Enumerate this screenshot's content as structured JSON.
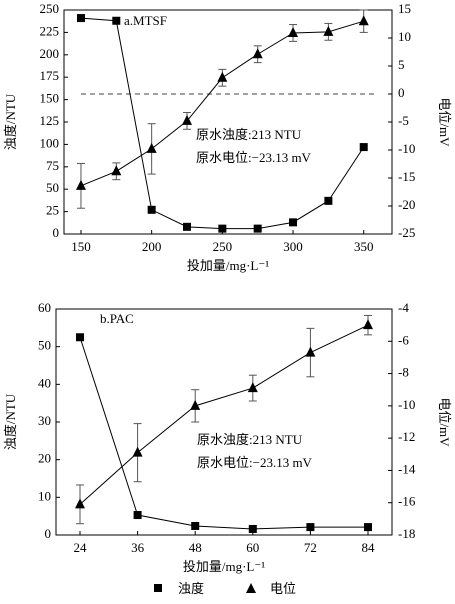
{
  "chart_data": [
    {
      "type": "line",
      "title": "a.MTSF",
      "x": [
        150,
        175,
        200,
        225,
        250,
        275,
        300,
        325,
        350
      ],
      "xlim": [
        138,
        370
      ],
      "xticks": [
        150,
        200,
        250,
        300,
        350
      ],
      "ylim": [
        0,
        250
      ],
      "yticks": [
        0,
        25,
        50,
        75,
        100,
        125,
        150,
        175,
        200,
        225,
        250
      ],
      "y2lim": [
        -25,
        15
      ],
      "y2ticks": [
        -25,
        -20,
        -15,
        -10,
        -5,
        0,
        5,
        10,
        15
      ],
      "xlabel": "投加量/mg·L⁻¹",
      "ylabel": "浊度/NTU",
      "y2label": "电位/mV",
      "annotations": [
        "原水浊度:213 NTU",
        "原水电位:−23.13 mV"
      ],
      "hline_y2": 0,
      "series": [
        {
          "name": "浊度",
          "marker": "square",
          "color": "#000000",
          "values": [
            241,
            238,
            27,
            8,
            6,
            6,
            13,
            37,
            97
          ]
        },
        {
          "name": "电位",
          "marker": "triangle",
          "color": "#000000",
          "axis": "y2",
          "values": [
            -16.4,
            -13.8,
            -9.8,
            -4.8,
            2.9,
            7.1,
            10.9,
            11.1,
            13.0
          ],
          "errors": [
            4,
            1.5,
            4.5,
            1.5,
            1.5,
            1.5,
            1.5,
            1.5,
            2
          ]
        }
      ]
    },
    {
      "type": "line",
      "title": "b.PAC",
      "x": [
        24,
        36,
        48,
        60,
        72,
        84
      ],
      "xlim": [
        19,
        89
      ],
      "xticks": [
        24,
        36,
        48,
        60,
        72,
        84
      ],
      "ylim": [
        0,
        60
      ],
      "yticks": [
        0,
        10,
        20,
        30,
        40,
        50,
        60
      ],
      "y2lim": [
        -18,
        -4
      ],
      "y2ticks": [
        -18,
        -16,
        -14,
        -12,
        -10,
        -8,
        -6,
        -4
      ],
      "xlabel": "投加量/mg·L⁻¹",
      "ylabel": "浊度/NTU",
      "y2label": "电位/mV",
      "annotations": [
        "原水浊度:213 NTU",
        "原水电位:−23.13 mV"
      ],
      "series": [
        {
          "name": "浊度",
          "marker": "square",
          "color": "#000000",
          "values": [
            52.5,
            5.3,
            2.4,
            1.6,
            2.1,
            2.1
          ]
        },
        {
          "name": "电位",
          "marker": "triangle",
          "color": "#000000",
          "axis": "y2",
          "values": [
            -16.1,
            -12.9,
            -10.0,
            -8.9,
            -6.7,
            -5.0
          ],
          "errors": [
            1.2,
            1.8,
            1.0,
            0.8,
            1.5,
            0.6
          ]
        }
      ]
    }
  ]
}
